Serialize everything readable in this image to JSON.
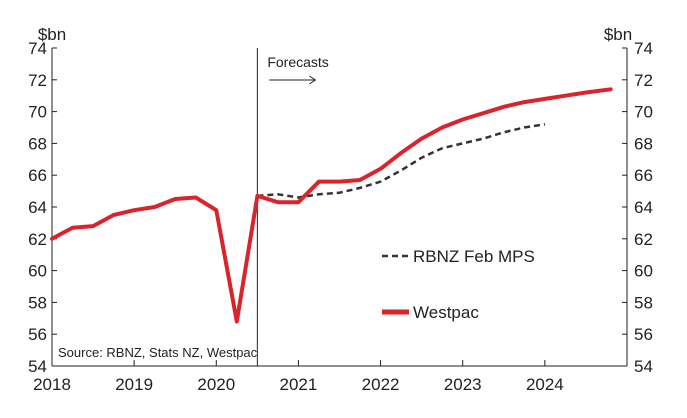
{
  "chart_data": {
    "type": "line",
    "ylabel_left": "$bn",
    "ylabel_right": "$bn",
    "ylim": [
      54,
      74
    ],
    "yticks": [
      54,
      56,
      58,
      60,
      62,
      64,
      66,
      68,
      70,
      72,
      74
    ],
    "xlim": [
      2018,
      2025
    ],
    "xticks": [
      2018,
      2019,
      2020,
      2021,
      2022,
      2023,
      2024
    ],
    "forecast_start": 2020.5,
    "forecast_label": "Forecasts",
    "source": "Source: RBNZ, Stats NZ, Westpac",
    "grid": false,
    "legend_position": "center-right",
    "series": [
      {
        "name": "RBNZ Feb MPS",
        "color": "#333333",
        "style": "dashed",
        "x": [
          2020.5,
          2020.75,
          2021.0,
          2021.25,
          2021.5,
          2021.75,
          2022.0,
          2022.25,
          2022.5,
          2022.75,
          2023.0,
          2023.25,
          2023.5,
          2023.75,
          2024.0
        ],
        "values": [
          64.7,
          64.8,
          64.6,
          64.8,
          64.9,
          65.2,
          65.6,
          66.3,
          67.1,
          67.7,
          68.0,
          68.3,
          68.7,
          69.0,
          69.2
        ]
      },
      {
        "name": "Westpac",
        "color": "#d9242b",
        "style": "solid",
        "x": [
          2018.0,
          2018.25,
          2018.5,
          2018.75,
          2019.0,
          2019.25,
          2019.5,
          2019.75,
          2020.0,
          2020.25,
          2020.5,
          2020.75,
          2021.0,
          2021.25,
          2021.5,
          2021.75,
          2022.0,
          2022.25,
          2022.5,
          2022.75,
          2023.0,
          2023.25,
          2023.5,
          2023.75,
          2024.0,
          2024.25,
          2024.5,
          2024.8
        ],
        "values": [
          62.0,
          62.7,
          62.8,
          63.5,
          63.8,
          64.0,
          64.5,
          64.6,
          63.8,
          56.8,
          64.7,
          64.3,
          64.3,
          65.6,
          65.6,
          65.7,
          66.4,
          67.4,
          68.3,
          69.0,
          69.5,
          69.9,
          70.3,
          70.6,
          70.8,
          71.0,
          71.2,
          71.4
        ]
      }
    ]
  }
}
